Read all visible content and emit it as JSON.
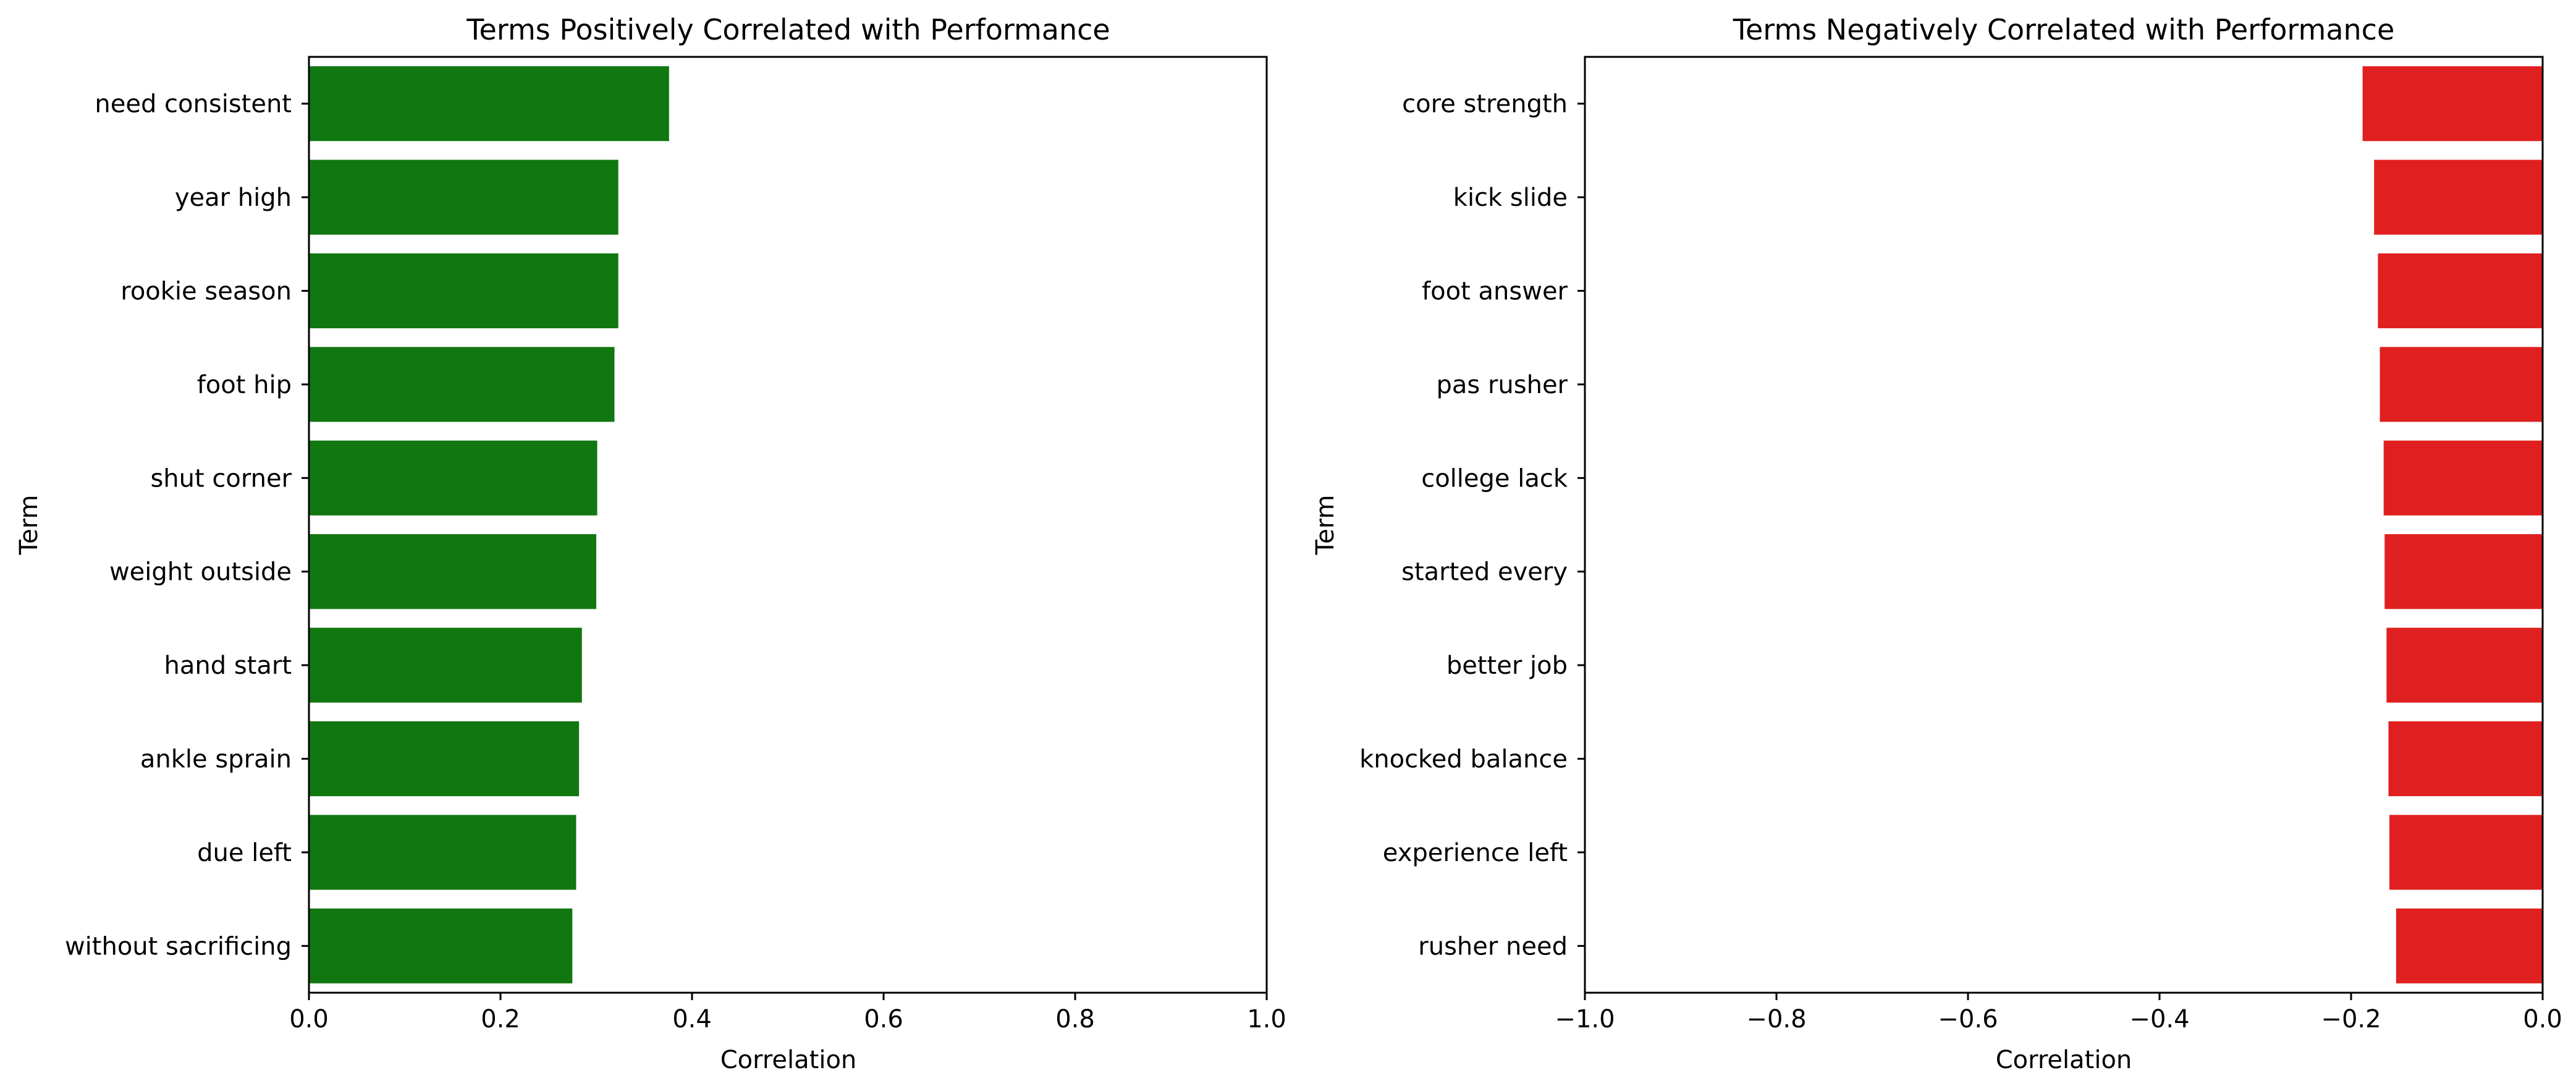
{
  "chart_data": [
    {
      "type": "bar",
      "orientation": "horizontal",
      "title": "Terms Positively Correlated with Performance",
      "xlabel": "Correlation",
      "ylabel": "Term",
      "xlim": [
        0.0,
        1.0
      ],
      "xticks": [
        "0.0",
        "0.2",
        "0.4",
        "0.6",
        "0.8",
        "1.0"
      ],
      "xtick_values": [
        0.0,
        0.2,
        0.4,
        0.6,
        0.8,
        1.0
      ],
      "grid": false,
      "bar_color": "#117711",
      "categories": [
        "need consistent",
        "year high",
        "rookie season",
        "foot hip",
        "shut corner",
        "weight outside",
        "hand start",
        "ankle sprain",
        "due left",
        "without sacrificing"
      ],
      "values": [
        0.376,
        0.323,
        0.323,
        0.319,
        0.301,
        0.3,
        0.285,
        0.282,
        0.279,
        0.275
      ]
    },
    {
      "type": "bar",
      "orientation": "horizontal",
      "title": "Terms Negatively Correlated with Performance",
      "xlabel": "Correlation",
      "ylabel": "Term",
      "xlim": [
        -1.0,
        0.0
      ],
      "xticks": [
        "−1.0",
        "−0.8",
        "−0.6",
        "−0.4",
        "−0.2",
        "0.0"
      ],
      "xtick_values": [
        -1.0,
        -0.8,
        -0.6,
        -0.4,
        -0.2,
        0.0
      ],
      "grid": false,
      "bar_color": "#e02020",
      "categories": [
        "core strength",
        "kick slide",
        "foot answer",
        "pas rusher",
        "college lack",
        "started every",
        "better job",
        "knocked balance",
        "experience left",
        "rusher need"
      ],
      "values": [
        -0.188,
        -0.176,
        -0.172,
        -0.17,
        -0.166,
        -0.165,
        -0.163,
        -0.161,
        -0.16,
        -0.153
      ]
    }
  ]
}
